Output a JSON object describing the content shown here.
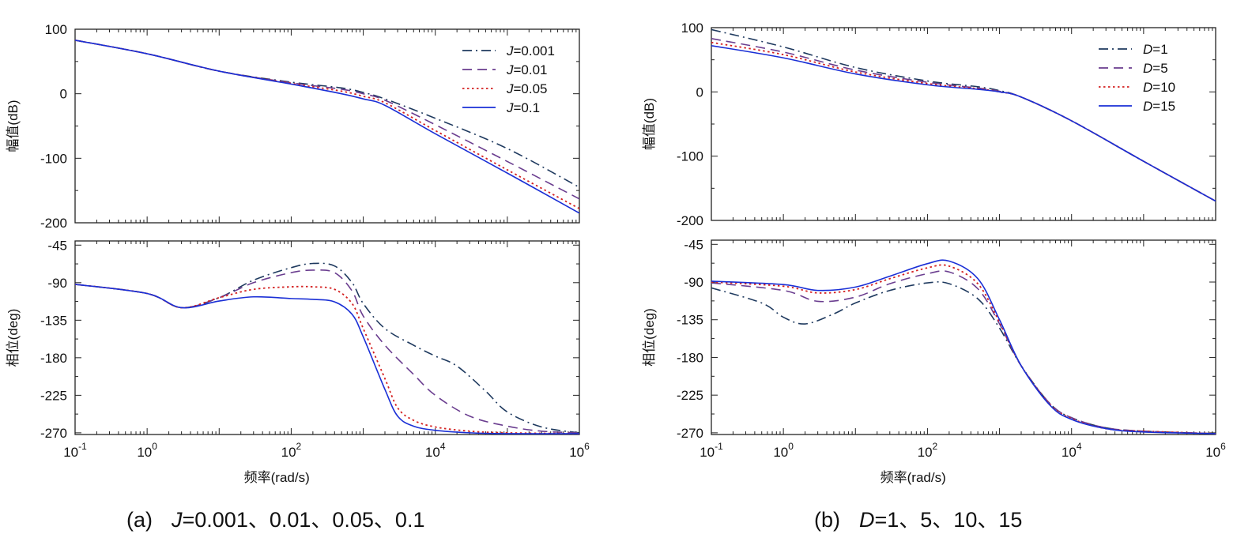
{
  "chart_data": [
    {
      "id": "a",
      "type": "line",
      "caption_prefix": "(a)",
      "caption_var": "J",
      "caption_rest": "=0.001、0.01、0.05、0.1",
      "xlabel": "频率(rad/s)",
      "x_ticks": [
        {
          "value": 0.1,
          "base": "10",
          "exp": "-1"
        },
        {
          "value": 1,
          "base": "10",
          "exp": "0"
        },
        {
          "value": 100,
          "base": "10",
          "exp": "2"
        },
        {
          "value": 10000,
          "base": "10",
          "exp": "4"
        },
        {
          "value": 1000000,
          "base": "10",
          "exp": "6"
        }
      ],
      "xlim": [
        0.1,
        1000000
      ],
      "x_scale": "log",
      "magnitude": {
        "ylabel": "幅值(dB)",
        "ylim": [
          -200,
          100
        ],
        "y_ticks": [
          "100",
          "0",
          "-100",
          "-200"
        ],
        "legend_position": "top-right",
        "series": [
          {
            "name_var": "J",
            "name_rest": "=0.001",
            "style": "dashdot",
            "color": "#1f3a5f",
            "x": [
              0.1,
              1,
              10,
              100,
              500,
              1000,
              2000,
              10000,
              100000,
              1000000
            ],
            "y": [
              83,
              62,
              35,
              18,
              9,
              2,
              -8,
              -38,
              -85,
              -145
            ]
          },
          {
            "name_var": "J",
            "name_rest": "=0.01",
            "style": "dash",
            "color": "#6a3d8f",
            "x": [
              0.1,
              1,
              10,
              100,
              500,
              1000,
              2000,
              10000,
              100000,
              1000000
            ],
            "y": [
              83,
              62,
              35,
              17,
              7,
              0,
              -10,
              -48,
              -105,
              -163
            ]
          },
          {
            "name_var": "J",
            "name_rest": "=0.05",
            "style": "dot",
            "color": "#d42020",
            "x": [
              0.1,
              1,
              10,
              100,
              500,
              1000,
              2000,
              10000,
              100000,
              1000000
            ],
            "y": [
              83,
              62,
              35,
              16,
              4,
              -4,
              -14,
              -57,
              -118,
              -178
            ]
          },
          {
            "name_var": "J",
            "name_rest": "=0.1",
            "style": "solid",
            "color": "#1a2fd6",
            "x": [
              0.1,
              1,
              10,
              100,
              500,
              1000,
              2000,
              10000,
              100000,
              1000000
            ],
            "y": [
              83,
              62,
              35,
              15,
              0,
              -8,
              -18,
              -62,
              -123,
              -185
            ]
          }
        ]
      },
      "phase": {
        "ylabel": "相位(deg)",
        "ylim": [
          -272,
          -40
        ],
        "y_ticks": [
          "-45",
          "-90",
          "-135",
          "-180",
          "-225",
          "-270"
        ],
        "y_tick_values": [
          -45,
          -90,
          -135,
          -180,
          -225,
          -270
        ],
        "series": [
          {
            "name_var": "J",
            "name_rest": "=0.001",
            "style": "dashdot",
            "color": "#1f3a5f",
            "x": [
              0.1,
              1,
              3,
              10,
              30,
              100,
              200,
              400,
              700,
              1000,
              2000,
              5000,
              10000,
              20000,
              50000,
              100000,
              300000,
              1000000
            ],
            "y": [
              -92,
              -103,
              -120,
              -108,
              -87,
              -72,
              -67,
              -70,
              -90,
              -115,
              -145,
              -165,
              -178,
              -190,
              -220,
              -245,
              -263,
              -270
            ]
          },
          {
            "name_var": "J",
            "name_rest": "=0.01",
            "style": "dash",
            "color": "#6a3d8f",
            "x": [
              0.1,
              1,
              3,
              10,
              30,
              100,
              200,
              400,
              700,
              1000,
              2000,
              5000,
              10000,
              30000,
              100000,
              300000,
              1000000
            ],
            "y": [
              -92,
              -103,
              -120,
              -108,
              -90,
              -78,
              -75,
              -78,
              -100,
              -130,
              -165,
              -200,
              -225,
              -250,
              -262,
              -268,
              -270
            ]
          },
          {
            "name_var": "J",
            "name_rest": "=0.05",
            "style": "dot",
            "color": "#d42020",
            "x": [
              0.1,
              1,
              3,
              10,
              30,
              100,
              200,
              400,
              700,
              1000,
              2000,
              3000,
              5000,
              10000,
              30000,
              100000,
              1000000
            ],
            "y": [
              -92,
              -103,
              -120,
              -108,
              -98,
              -95,
              -95,
              -98,
              -115,
              -145,
              -205,
              -240,
              -255,
              -263,
              -268,
              -270,
              -271
            ]
          },
          {
            "name_var": "J",
            "name_rest": "=0.1",
            "style": "solid",
            "color": "#1a2fd6",
            "x": [
              0.1,
              1,
              3,
              10,
              30,
              100,
              200,
              400,
              700,
              1000,
              2000,
              3000,
              5000,
              10000,
              30000,
              100000,
              1000000
            ],
            "y": [
              -92,
              -103,
              -120,
              -112,
              -107,
              -109,
              -110,
              -113,
              -128,
              -155,
              -218,
              -250,
              -262,
              -267,
              -270,
              -271,
              -271
            ]
          }
        ]
      }
    },
    {
      "id": "b",
      "type": "line",
      "caption_prefix": "(b)",
      "caption_var": "D",
      "caption_rest": "=1、5、10、15",
      "xlabel": "频率(rad/s)",
      "x_ticks": [
        {
          "value": 0.1,
          "base": "10",
          "exp": "-1"
        },
        {
          "value": 1,
          "base": "10",
          "exp": "0"
        },
        {
          "value": 100,
          "base": "10",
          "exp": "2"
        },
        {
          "value": 10000,
          "base": "10",
          "exp": "4"
        },
        {
          "value": 1000000,
          "base": "10",
          "exp": "6"
        }
      ],
      "xlim": [
        0.1,
        1000000
      ],
      "x_scale": "log",
      "magnitude": {
        "ylabel": "幅值(dB)",
        "ylim": [
          -200,
          100
        ],
        "y_ticks": [
          "100",
          "0",
          "-100",
          "-200"
        ],
        "legend_position": "top-right",
        "series": [
          {
            "name_var": "D",
            "name_rest": "=1",
            "style": "dashdot",
            "color": "#1f3a5f",
            "x": [
              0.1,
              1,
              10,
              100,
              500,
              1000,
              2000,
              10000,
              100000,
              1000000
            ],
            "y": [
              97,
              70,
              38,
              17,
              8,
              2,
              -8,
              -45,
              -108,
              -170
            ]
          },
          {
            "name_var": "D",
            "name_rest": "=5",
            "style": "dash",
            "color": "#6a3d8f",
            "x": [
              0.1,
              1,
              10,
              100,
              500,
              1000,
              2000,
              10000,
              100000,
              1000000
            ],
            "y": [
              83,
              62,
              34,
              15,
              6,
              1,
              -8,
              -45,
              -108,
              -170
            ]
          },
          {
            "name_var": "D",
            "name_rest": "=10",
            "style": "dot",
            "color": "#d42020",
            "x": [
              0.1,
              1,
              10,
              100,
              500,
              1000,
              2000,
              10000,
              100000,
              1000000
            ],
            "y": [
              77,
              58,
              31,
              13,
              5,
              0,
              -8,
              -45,
              -108,
              -170
            ]
          },
          {
            "name_var": "D",
            "name_rest": "=15",
            "style": "solid",
            "color": "#1a2fd6",
            "x": [
              0.1,
              1,
              10,
              100,
              500,
              1000,
              2000,
              10000,
              100000,
              1000000
            ],
            "y": [
              72,
              53,
              28,
              11,
              4,
              0,
              -8,
              -45,
              -108,
              -170
            ]
          }
        ]
      },
      "phase": {
        "ylabel": "相位(deg)",
        "ylim": [
          -272,
          -40
        ],
        "y_ticks": [
          "-45",
          "-90",
          "-135",
          "-180",
          "-225",
          "-270"
        ],
        "y_tick_values": [
          -45,
          -90,
          -135,
          -180,
          -225,
          -270
        ],
        "series": [
          {
            "name_var": "D",
            "name_rest": "=1",
            "style": "dashdot",
            "color": "#1f3a5f",
            "x": [
              0.1,
              0.5,
              1,
              2,
              5,
              10,
              30,
              100,
              200,
              500,
              1000,
              2000,
              5000,
              10000,
              30000,
              100000,
              1000000
            ],
            "y": [
              -97,
              -115,
              -132,
              -140,
              -128,
              -115,
              -100,
              -91,
              -92,
              -110,
              -145,
              -190,
              -235,
              -252,
              -264,
              -268,
              -271
            ]
          },
          {
            "name_var": "D",
            "name_rest": "=5",
            "style": "dash",
            "color": "#6a3d8f",
            "x": [
              0.1,
              1,
              3,
              10,
              30,
              100,
              200,
              500,
              1000,
              2000,
              5000,
              10000,
              30000,
              100000,
              1000000
            ],
            "y": [
              -91,
              -100,
              -113,
              -108,
              -92,
              -80,
              -78,
              -98,
              -140,
              -190,
              -235,
              -252,
              -264,
              -268,
              -271
            ]
          },
          {
            "name_var": "D",
            "name_rest": "=10",
            "style": "dot",
            "color": "#d42020",
            "x": [
              0.1,
              1,
              3,
              10,
              30,
              100,
              200,
              500,
              1000,
              2000,
              5000,
              10000,
              30000,
              100000,
              1000000
            ],
            "y": [
              -90,
              -95,
              -103,
              -99,
              -86,
              -73,
              -71,
              -92,
              -138,
              -190,
              -236,
              -253,
              -265,
              -268,
              -271
            ]
          },
          {
            "name_var": "D",
            "name_rest": "=15",
            "style": "solid",
            "color": "#1a2fd6",
            "x": [
              0.1,
              1,
              3,
              10,
              30,
              100,
              200,
              500,
              1000,
              2000,
              5000,
              10000,
              30000,
              100000,
              1000000
            ],
            "y": [
              -89,
              -93,
              -100,
              -96,
              -83,
              -68,
              -65,
              -86,
              -135,
              -190,
              -237,
              -254,
              -265,
              -269,
              -271
            ]
          }
        ]
      }
    }
  ]
}
